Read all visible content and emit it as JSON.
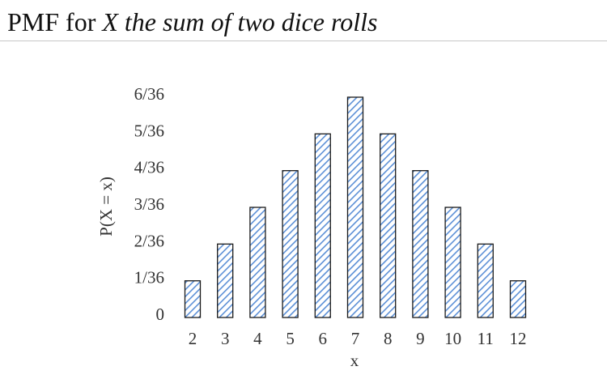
{
  "header": {
    "title_prefix": "PMF for ",
    "title_italic": "X the sum of two dice rolls"
  },
  "colors": {
    "bar_stripe": "#5b8fd6",
    "bar_background": "#ffffff",
    "bar_outline": "#1a1a1a"
  },
  "chart_data": {
    "type": "bar",
    "title": "PMF for X the sum of two dice rolls",
    "xlabel": "x",
    "ylabel": "P(X = x)",
    "categories": [
      "2",
      "3",
      "4",
      "5",
      "6",
      "7",
      "8",
      "9",
      "10",
      "11",
      "12"
    ],
    "values": [
      1,
      2,
      3,
      4,
      5,
      6,
      5,
      4,
      3,
      2,
      1
    ],
    "value_unit": "1/36",
    "ylim": [
      0,
      6
    ],
    "y_ticks": [
      {
        "value": 0,
        "label": "0"
      },
      {
        "value": 1,
        "label": "1/36"
      },
      {
        "value": 2,
        "label": "2/36"
      },
      {
        "value": 3,
        "label": "3/36"
      },
      {
        "value": 4,
        "label": "4/36"
      },
      {
        "value": 5,
        "label": "5/36"
      },
      {
        "value": 6,
        "label": "6/36"
      }
    ],
    "grid": false,
    "legend": "none",
    "bar_fill": "diagonal-hatch"
  }
}
